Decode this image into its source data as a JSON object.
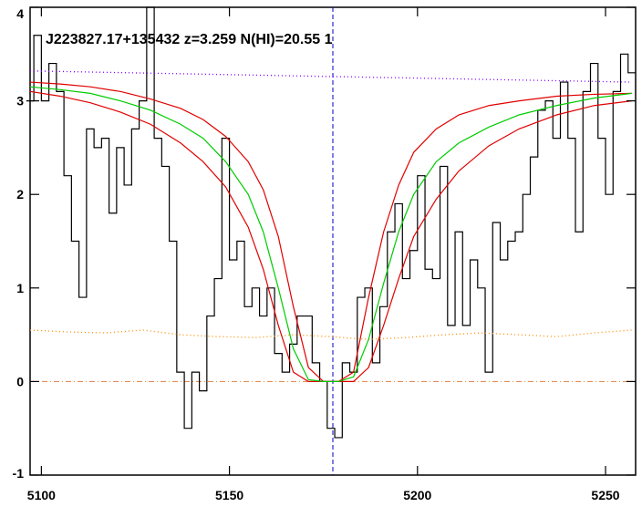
{
  "chart_data": {
    "type": "line",
    "title": "J223827.17+135432 z=3.259 N(HI)=20.55 1",
    "xlim": [
      5097,
      5258
    ],
    "ylim": [
      -1,
      4
    ],
    "xticks": [
      5100,
      5150,
      5200,
      5250
    ],
    "yticks": [
      -1,
      0,
      1,
      2,
      3,
      4
    ],
    "hline": {
      "value": 0,
      "color": "#e08040"
    },
    "vline": {
      "value": 5177.5,
      "color": "#0000cc"
    },
    "series": [
      {
        "style": "steps",
        "color": "#000000",
        "x": [
          5097,
          5099,
          5101,
          5103,
          5105,
          5107,
          5109,
          5111,
          5113,
          5115,
          5117,
          5119,
          5121,
          5123,
          5125,
          5127,
          5129,
          5131,
          5133,
          5135,
          5137,
          5139,
          5141,
          5143,
          5145,
          5147,
          5149,
          5151,
          5153,
          5155,
          5157,
          5159,
          5161,
          5163,
          5165,
          5167,
          5169,
          5171,
          5173,
          5175,
          5177,
          5179,
          5181,
          5183,
          5185,
          5187,
          5189,
          5191,
          5193,
          5195,
          5197,
          5199,
          5201,
          5203,
          5205,
          5207,
          5209,
          5211,
          5213,
          5215,
          5217,
          5219,
          5221,
          5223,
          5225,
          5227,
          5229,
          5231,
          5233,
          5235,
          5237,
          5239,
          5241,
          5243,
          5245,
          5247,
          5249,
          5251,
          5253,
          5255,
          5257
        ],
        "values": [
          3.0,
          3.7,
          3.0,
          3.4,
          3.1,
          2.2,
          1.5,
          0.9,
          2.7,
          2.5,
          2.6,
          1.8,
          2.5,
          2.1,
          2.7,
          3.0,
          4.0,
          2.6,
          2.3,
          1.5,
          0.1,
          -0.5,
          0.1,
          -0.1,
          0.7,
          1.1,
          2.6,
          1.3,
          1.5,
          0.8,
          1.0,
          0.7,
          1.0,
          0.3,
          0.1,
          0.4,
          0.7,
          0.7,
          0.2,
          0.0,
          -0.5,
          -0.6,
          0.2,
          0.1,
          0.9,
          1.0,
          0.2,
          0.8,
          1.6,
          1.9,
          1.1,
          1.4,
          2.2,
          1.2,
          1.1,
          2.3,
          0.6,
          1.6,
          0.6,
          1.3,
          1.0,
          0.1,
          1.7,
          1.3,
          1.5,
          1.6,
          2.0,
          2.4,
          2.9,
          3.0,
          2.6,
          3.2,
          2.6,
          1.6,
          3.1,
          3.4,
          2.6,
          2.0,
          3.1,
          3.5,
          3.3
        ]
      },
      {
        "style": "dotted",
        "color": "#8000ff",
        "x": [
          5097,
          5257
        ],
        "values": [
          3.32,
          3.2
        ]
      },
      {
        "style": "dotted",
        "color": "#ff8c00",
        "x": [
          5097,
          5107,
          5117,
          5127,
          5137,
          5147,
          5157,
          5167,
          5177,
          5187,
          5197,
          5207,
          5217,
          5227,
          5237,
          5247,
          5257
        ],
        "values": [
          0.55,
          0.53,
          0.52,
          0.55,
          0.5,
          0.48,
          0.47,
          0.5,
          0.48,
          0.45,
          0.47,
          0.5,
          0.52,
          0.5,
          0.48,
          0.52,
          0.55
        ]
      },
      {
        "style": "solid",
        "color": "#e00000",
        "x": [
          5097,
          5105,
          5113,
          5121,
          5129,
          5137,
          5143,
          5149,
          5155,
          5159,
          5163,
          5167,
          5171,
          5175,
          5179,
          5183,
          5187,
          5191,
          5195,
          5199,
          5205,
          5211,
          5219,
          5227,
          5237,
          5247,
          5257
        ],
        "values": [
          3.2,
          3.18,
          3.15,
          3.1,
          3.02,
          2.92,
          2.8,
          2.62,
          2.35,
          2.05,
          1.55,
          0.8,
          0.15,
          0,
          0,
          0.1,
          0.9,
          1.6,
          2.1,
          2.45,
          2.7,
          2.85,
          2.95,
          3.0,
          3.05,
          3.07,
          3.08
        ]
      },
      {
        "style": "solid",
        "color": "#e00000",
        "x": [
          5097,
          5105,
          5113,
          5121,
          5129,
          5137,
          5143,
          5149,
          5155,
          5159,
          5163,
          5167,
          5171,
          5175,
          5179,
          5183,
          5187,
          5191,
          5195,
          5199,
          5205,
          5211,
          5219,
          5227,
          5237,
          5247,
          5257
        ],
        "values": [
          3.1,
          3.05,
          2.98,
          2.88,
          2.75,
          2.55,
          2.35,
          2.08,
          1.65,
          1.2,
          0.6,
          0.1,
          0,
          0,
          0,
          0,
          0.15,
          0.6,
          1.1,
          1.55,
          1.95,
          2.25,
          2.52,
          2.7,
          2.85,
          2.95,
          3.0
        ]
      },
      {
        "style": "solid",
        "color": "#00cc00",
        "x": [
          5097,
          5105,
          5113,
          5121,
          5129,
          5137,
          5143,
          5149,
          5155,
          5159,
          5163,
          5167,
          5171,
          5175,
          5179,
          5183,
          5187,
          5191,
          5195,
          5199,
          5205,
          5211,
          5219,
          5227,
          5237,
          5247,
          5257
        ],
        "values": [
          3.15,
          3.12,
          3.08,
          3.0,
          2.9,
          2.75,
          2.6,
          2.35,
          2.0,
          1.6,
          1.0,
          0.35,
          0.02,
          0,
          0,
          0.05,
          0.45,
          1.05,
          1.6,
          2.0,
          2.35,
          2.55,
          2.72,
          2.85,
          2.95,
          3.03,
          3.08
        ]
      }
    ]
  }
}
